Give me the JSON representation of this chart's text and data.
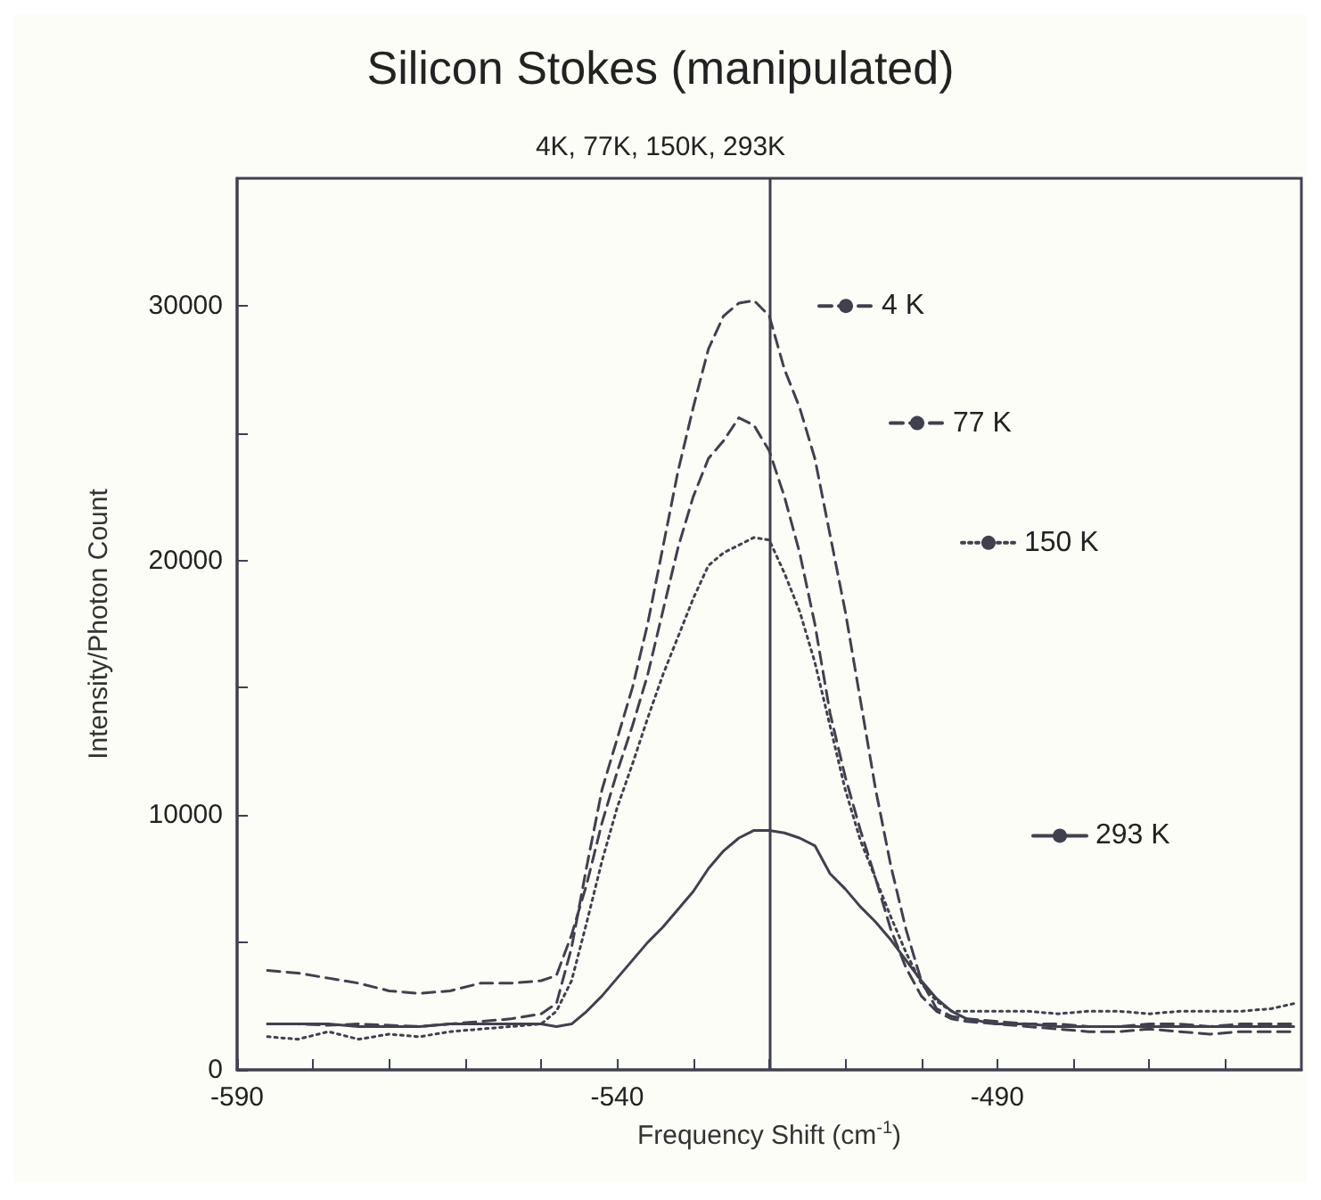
{
  "chart_data": {
    "type": "line",
    "title": "Silicon Stokes (manipulated)",
    "subtitle": "4K, 77K, 150K, 293K",
    "xlabel": "Frequency Shift (cm$^{-1}$)",
    "ylabel": "Intensity/Photon Count",
    "x": [
      -586,
      -582,
      -578,
      -574,
      -570,
      -566,
      -562,
      -558,
      -554,
      -550,
      -548,
      -546,
      -544,
      -542,
      -540,
      -538,
      -536,
      -534,
      -532,
      -530,
      -528,
      -526,
      -524,
      -522,
      -520,
      -518,
      -516,
      -514,
      -512,
      -510,
      -508,
      -506,
      -504,
      -502,
      -500,
      -498,
      -496,
      -494,
      -490,
      -486,
      -482,
      -478,
      -474,
      -470,
      -466,
      -462,
      -458,
      -454,
      -451
    ],
    "series": [
      {
        "name": "4 K",
        "color": "#40404f",
        "line_style": "dashed",
        "values": [
          1800,
          1800,
          1750,
          1800,
          1750,
          1700,
          1800,
          1900,
          2000,
          2200,
          2600,
          4800,
          8000,
          11000,
          13000,
          15000,
          17500,
          20500,
          23500,
          26000,
          28300,
          29600,
          30100,
          30200,
          29600,
          27500,
          26000,
          24000,
          21000,
          18000,
          14500,
          11000,
          8000,
          5500,
          3500,
          2400,
          2100,
          2000,
          1900,
          1800,
          1800,
          1700,
          1700,
          1800,
          1800,
          1700,
          1800,
          1800,
          1800
        ]
      },
      {
        "name": "77 K",
        "color": "#40404f",
        "line_style": "dashed",
        "values": [
          3900,
          3800,
          3600,
          3400,
          3100,
          3000,
          3100,
          3400,
          3400,
          3500,
          3700,
          5300,
          7300,
          9700,
          11700,
          13500,
          15500,
          18000,
          20500,
          22500,
          24000,
          24700,
          25600,
          25300,
          24300,
          22500,
          20300,
          17500,
          14000,
          11500,
          9400,
          7500,
          5500,
          4000,
          2900,
          2300,
          2000,
          1900,
          1800,
          1700,
          1600,
          1500,
          1500,
          1600,
          1500,
          1400,
          1500,
          1500,
          1500
        ]
      },
      {
        "name": "150 K",
        "color": "#40404f",
        "line_style": "dotted",
        "values": [
          1300,
          1200,
          1500,
          1200,
          1400,
          1300,
          1500,
          1600,
          1700,
          1800,
          2300,
          3500,
          5800,
          8200,
          10300,
          12000,
          13800,
          15500,
          17000,
          18500,
          19800,
          20300,
          20600,
          20900,
          20800,
          19500,
          18000,
          16000,
          13500,
          11000,
          9000,
          7500,
          6000,
          4600,
          3400,
          2700,
          2300,
          2300,
          2300,
          2300,
          2200,
          2300,
          2300,
          2200,
          2300,
          2300,
          2300,
          2400,
          2600
        ]
      },
      {
        "name": "293 K",
        "color": "#40404f",
        "line_style": "solid",
        "values": [
          1800,
          1800,
          1800,
          1700,
          1700,
          1700,
          1800,
          1800,
          1800,
          1800,
          1700,
          1800,
          2300,
          2900,
          3600,
          4300,
          5000,
          5600,
          6300,
          7000,
          7900,
          8600,
          9100,
          9400,
          9400,
          9300,
          9100,
          8800,
          7700,
          7100,
          6400,
          5800,
          5100,
          4300,
          3500,
          2800,
          2300,
          2000,
          1800,
          1800,
          1700,
          1700,
          1700,
          1700,
          1700,
          1700,
          1700,
          1700,
          1700
        ]
      }
    ],
    "ref_lines": [
      {
        "axis": "x",
        "value": -520,
        "color": "#40404f"
      }
    ],
    "xlim": [
      -590,
      -450
    ],
    "xticks": [
      -590,
      {
        "value": -580,
        "label": null
      },
      {
        "value": -570,
        "label": null
      },
      {
        "value": -560,
        "label": null
      },
      {
        "value": -550,
        "label": null
      },
      -540,
      {
        "value": -530,
        "label": null
      },
      {
        "value": -520,
        "label": null
      },
      {
        "value": -510,
        "label": null
      },
      {
        "value": -500,
        "label": null
      },
      -490,
      {
        "value": -480,
        "label": null
      },
      {
        "value": -470,
        "label": null
      },
      {
        "value": -460,
        "label": null
      }
    ],
    "ylim": [
      0,
      35000
    ],
    "yticks": [
      0,
      {
        "value": 5000,
        "label": null
      },
      10000,
      {
        "value": 15000,
        "label": null
      },
      20000,
      {
        "value": 25000,
        "label": null
      },
      30000
    ],
    "grid": false,
    "legend": "right",
    "marker": "none"
  }
}
